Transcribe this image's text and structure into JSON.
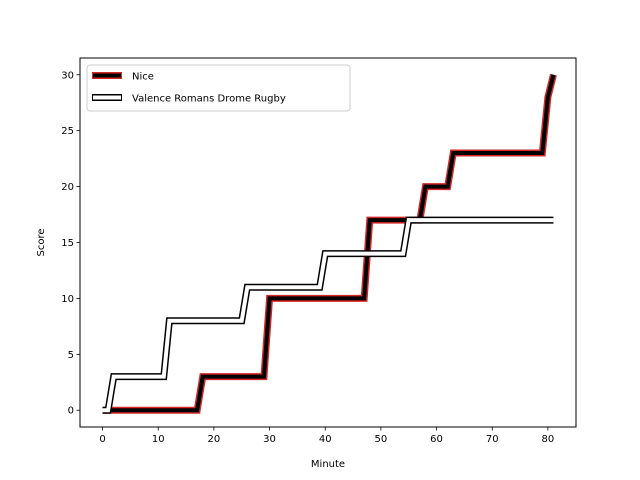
{
  "chart_data": {
    "type": "line",
    "title": "",
    "xlabel": "Minute",
    "ylabel": "Score",
    "xlim": [
      -4.05,
      85.05
    ],
    "ylim": [
      -1.5,
      31.5
    ],
    "xticks": [
      0,
      10,
      20,
      30,
      40,
      50,
      60,
      70,
      80
    ],
    "yticks": [
      0,
      5,
      10,
      15,
      20,
      25,
      30
    ],
    "grid": false,
    "legend_position": "top-left",
    "series": [
      {
        "name": "Nice",
        "style": "thick-black-red-outline",
        "line_color": "#000000",
        "edge_color": "#d62728",
        "x": [
          0,
          17,
          18,
          29,
          30,
          47,
          48,
          57,
          58,
          62,
          63,
          79,
          80,
          81
        ],
        "y": [
          0,
          0,
          3,
          3,
          10,
          10,
          17,
          17,
          20,
          20,
          23,
          23,
          28,
          30
        ]
      },
      {
        "name": "Valence Romans Drome Rugby",
        "style": "white-black-outline",
        "line_color": "#ffffff",
        "edge_color": "#000000",
        "x": [
          0,
          1,
          2,
          11,
          12,
          25,
          26,
          39,
          40,
          54,
          55,
          81
        ],
        "y": [
          0,
          0,
          3,
          3,
          8,
          8,
          11,
          11,
          14,
          14,
          17,
          17
        ]
      }
    ]
  }
}
